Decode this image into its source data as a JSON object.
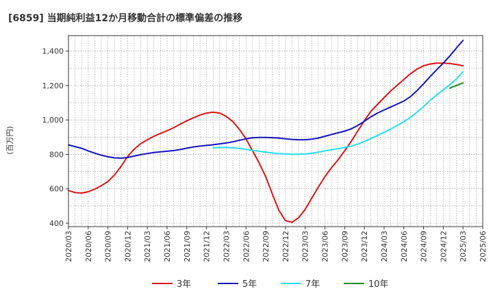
{
  "chart_data": {
    "type": "line",
    "title": "[6859]  当期純利益12か月移動合計の標準偏差の推移",
    "ylabel": "(百万円)",
    "xlabel": "",
    "ylim": [
      380,
      1490
    ],
    "yticks": [
      400,
      600,
      800,
      1000,
      1200,
      1400
    ],
    "ytick_labels": [
      "400",
      "600",
      "800",
      "1,000",
      "1,200",
      "1,400"
    ],
    "xlim": [
      "2020-03",
      "2025-06"
    ],
    "xticks": [
      "2020/03",
      "2020/06",
      "2020/09",
      "2020/12",
      "2021/03",
      "2021/06",
      "2021/09",
      "2021/12",
      "2022/03",
      "2022/06",
      "2022/09",
      "2022/12",
      "2023/03",
      "2023/06",
      "2023/09",
      "2023/12",
      "2024/03",
      "2024/06",
      "2024/09",
      "2024/12",
      "2025/03",
      "2025/06"
    ],
    "grid": true,
    "legend_position": "bottom",
    "series": [
      {
        "name": "3年",
        "color": "#dd1111",
        "x": [
          "2020-03",
          "2020-04",
          "2020-05",
          "2020-06",
          "2020-07",
          "2020-08",
          "2020-09",
          "2020-10",
          "2020-11",
          "2020-12",
          "2021-01",
          "2021-02",
          "2021-03",
          "2021-04",
          "2021-05",
          "2021-06",
          "2021-07",
          "2021-08",
          "2021-09",
          "2021-10",
          "2021-11",
          "2021-12",
          "2022-01",
          "2022-02",
          "2022-03",
          "2022-04",
          "2022-05",
          "2022-06",
          "2022-07",
          "2022-08",
          "2022-09",
          "2022-10",
          "2022-11",
          "2022-12",
          "2023-01",
          "2023-02",
          "2023-03",
          "2023-04",
          "2023-05",
          "2023-06",
          "2023-07",
          "2023-08",
          "2023-09",
          "2023-10",
          "2023-11",
          "2023-12",
          "2024-01",
          "2024-02",
          "2024-03",
          "2024-04",
          "2024-05",
          "2024-06",
          "2024-07",
          "2024-08",
          "2024-09",
          "2024-10",
          "2024-11",
          "2024-12",
          "2025-01",
          "2025-02",
          "2025-03"
        ],
        "values": [
          590,
          578,
          575,
          583,
          598,
          618,
          642,
          680,
          730,
          788,
          830,
          862,
          885,
          905,
          922,
          937,
          955,
          975,
          995,
          1012,
          1028,
          1040,
          1045,
          1040,
          1020,
          990,
          945,
          890,
          820,
          750,
          670,
          570,
          475,
          415,
          405,
          432,
          480,
          545,
          610,
          670,
          722,
          768,
          820,
          875,
          935,
          995,
          1050,
          1090,
          1130,
          1168,
          1202,
          1235,
          1268,
          1295,
          1315,
          1325,
          1330,
          1330,
          1328,
          1322,
          1315
        ]
      },
      {
        "name": "5年",
        "color": "#1111bb",
        "x": [
          "2020-03",
          "2020-04",
          "2020-05",
          "2020-06",
          "2020-07",
          "2020-08",
          "2020-09",
          "2020-10",
          "2020-11",
          "2020-12",
          "2021-01",
          "2021-02",
          "2021-03",
          "2021-04",
          "2021-05",
          "2021-06",
          "2021-07",
          "2021-08",
          "2021-09",
          "2021-10",
          "2021-11",
          "2021-12",
          "2022-01",
          "2022-02",
          "2022-03",
          "2022-04",
          "2022-05",
          "2022-06",
          "2022-07",
          "2022-08",
          "2022-09",
          "2022-10",
          "2022-11",
          "2022-12",
          "2023-01",
          "2023-02",
          "2023-03",
          "2023-04",
          "2023-05",
          "2023-06",
          "2023-07",
          "2023-08",
          "2023-09",
          "2023-10",
          "2023-11",
          "2023-12",
          "2024-01",
          "2024-02",
          "2024-03",
          "2024-04",
          "2024-05",
          "2024-06",
          "2024-07",
          "2024-08",
          "2024-09",
          "2024-10",
          "2024-11",
          "2024-12",
          "2025-01",
          "2025-02",
          "2025-03"
        ],
        "values": [
          855,
          845,
          835,
          820,
          807,
          795,
          786,
          780,
          778,
          782,
          790,
          798,
          805,
          811,
          815,
          818,
          822,
          828,
          836,
          843,
          848,
          852,
          856,
          861,
          866,
          873,
          882,
          890,
          896,
          898,
          898,
          897,
          895,
          890,
          887,
          885,
          885,
          888,
          895,
          905,
          915,
          925,
          935,
          948,
          968,
          992,
          1018,
          1040,
          1058,
          1075,
          1092,
          1110,
          1135,
          1170,
          1210,
          1252,
          1292,
          1330,
          1372,
          1418,
          1462
        ]
      },
      {
        "name": "7年",
        "color": "#22e0ee",
        "x": [
          "2022-01",
          "2022-02",
          "2022-03",
          "2022-04",
          "2022-05",
          "2022-06",
          "2022-07",
          "2022-08",
          "2022-09",
          "2022-10",
          "2022-11",
          "2022-12",
          "2023-01",
          "2023-02",
          "2023-03",
          "2023-04",
          "2023-05",
          "2023-06",
          "2023-07",
          "2023-08",
          "2023-09",
          "2023-10",
          "2023-11",
          "2023-12",
          "2024-01",
          "2024-02",
          "2024-03",
          "2024-04",
          "2024-05",
          "2024-06",
          "2024-07",
          "2024-08",
          "2024-09",
          "2024-10",
          "2024-11",
          "2024-12",
          "2025-01",
          "2025-02",
          "2025-03"
        ],
        "values": [
          838,
          840,
          840,
          838,
          834,
          829,
          823,
          818,
          813,
          808,
          804,
          802,
          801,
          801,
          803,
          807,
          813,
          820,
          827,
          833,
          840,
          848,
          860,
          875,
          892,
          910,
          928,
          947,
          968,
          990,
          1015,
          1045,
          1078,
          1113,
          1145,
          1175,
          1205,
          1238,
          1280
        ]
      },
      {
        "name": "10年",
        "color": "#228822",
        "x": [
          "2025-01",
          "2025-02",
          "2025-03"
        ],
        "values": [
          1185,
          1200,
          1215
        ]
      }
    ]
  }
}
